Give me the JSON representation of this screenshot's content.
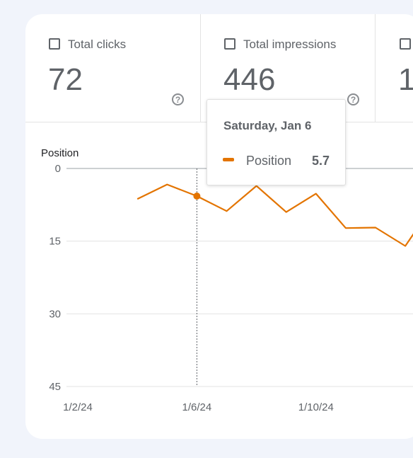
{
  "metrics": [
    {
      "label": "Total clicks",
      "value": "72"
    },
    {
      "label": "Total impressions",
      "value": "446"
    },
    {
      "label": "",
      "value": "1"
    }
  ],
  "help_icon": "?",
  "tooltip": {
    "date": "Saturday, Jan 6",
    "series": "Position",
    "value": "5.7"
  },
  "chart_data": {
    "type": "line",
    "ylabel": "Position",
    "y_inverted": true,
    "ylim": [
      0,
      45
    ],
    "yticks": [
      0,
      15,
      30,
      45
    ],
    "xtick_labels": [
      "1/2/24",
      "1/6/24",
      "1/10/24"
    ],
    "x": [
      "1/4/24",
      "1/5/24",
      "1/6/24",
      "1/7/24",
      "1/8/24",
      "1/9/24",
      "1/10/24",
      "1/11/24",
      "1/12/24",
      "1/13/24",
      "1/14/24"
    ],
    "series": [
      {
        "name": "Position",
        "color": "#e37400",
        "values": [
          6.3,
          3.3,
          5.7,
          8.8,
          3.6,
          9.0,
          5.2,
          12.3,
          12.2,
          16.0,
          7.0
        ]
      }
    ],
    "highlight": {
      "x": "1/6/24",
      "value": 5.7
    }
  }
}
